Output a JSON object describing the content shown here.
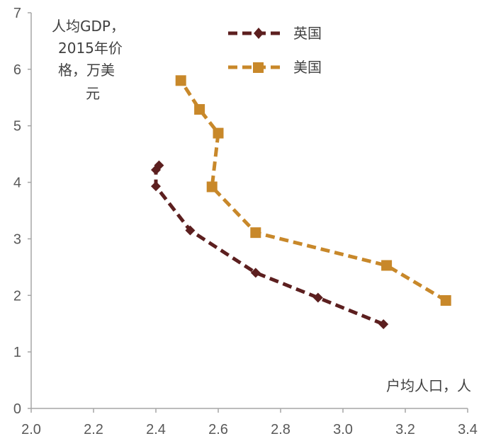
{
  "chart_data": {
    "type": "line",
    "title": "",
    "xlabel": "户均人口，人",
    "ylabel": [
      "人均GDP，",
      "2015年价",
      "格，万美",
      "元"
    ],
    "xlim": [
      2.0,
      3.4
    ],
    "ylim": [
      0,
      7
    ],
    "x_ticks": [
      "2.0",
      "2.2",
      "2.4",
      "2.6",
      "2.8",
      "3.0",
      "3.2",
      "3.4"
    ],
    "y_ticks": [
      "0",
      "1",
      "2",
      "3",
      "4",
      "5",
      "6",
      "7"
    ],
    "grid": false,
    "legend_position": "top-center",
    "series": [
      {
        "name": "英国",
        "color": "#5c1f1f",
        "marker": "diamond",
        "points": [
          [
            3.13,
            1.49
          ],
          [
            2.92,
            1.96
          ],
          [
            2.72,
            2.4
          ],
          [
            2.51,
            3.15
          ],
          [
            2.4,
            3.93
          ],
          [
            2.4,
            4.22
          ],
          [
            2.41,
            4.3
          ]
        ]
      },
      {
        "name": "美国",
        "color": "#c8882a",
        "marker": "square",
        "points": [
          [
            3.33,
            1.91
          ],
          [
            3.14,
            2.53
          ],
          [
            2.72,
            3.11
          ],
          [
            2.58,
            3.92
          ],
          [
            2.6,
            4.87
          ],
          [
            2.54,
            5.29
          ],
          [
            2.48,
            5.8
          ]
        ]
      }
    ]
  }
}
